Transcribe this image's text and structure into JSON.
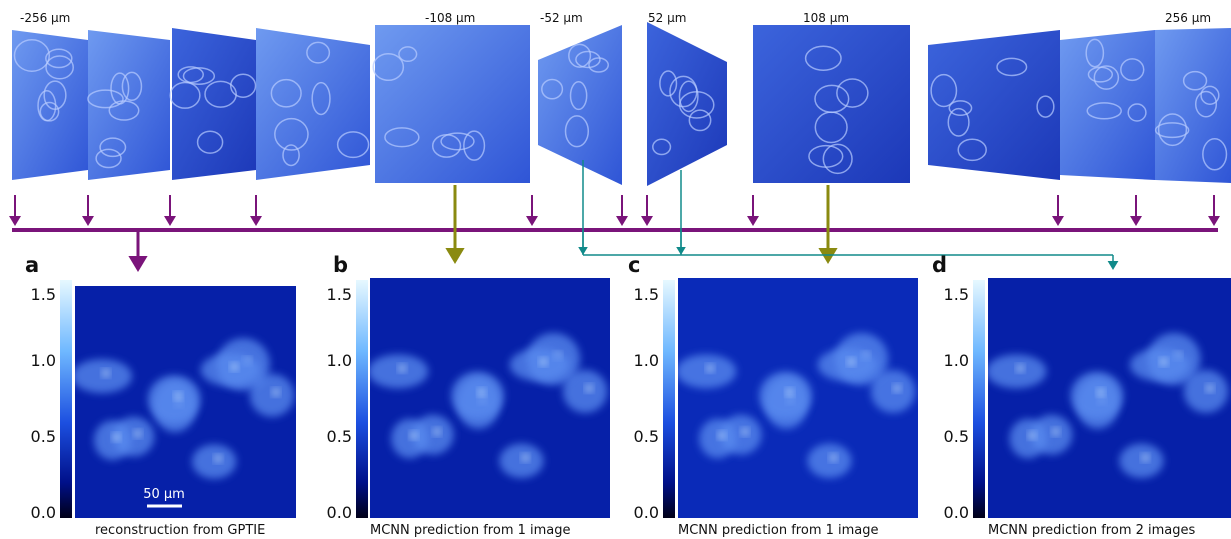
{
  "depth_labels": [
    "-256 µm",
    "-108 µm",
    "-52 µm",
    "52 µm",
    "108 µm",
    "256 µm"
  ],
  "panels": [
    {
      "letter": "a",
      "caption": "reconstruction from GPTIE"
    },
    {
      "letter": "b",
      "caption": "MCNN prediction from 1 image"
    },
    {
      "letter": "c",
      "caption": "MCNN prediction from 1 image"
    },
    {
      "letter": "d",
      "caption": "MCNN prediction from 2 images"
    }
  ],
  "colorbar_ticks": [
    "1.5",
    "1.0",
    "0.5",
    "0.0"
  ],
  "scale_bar": "50 µm"
}
